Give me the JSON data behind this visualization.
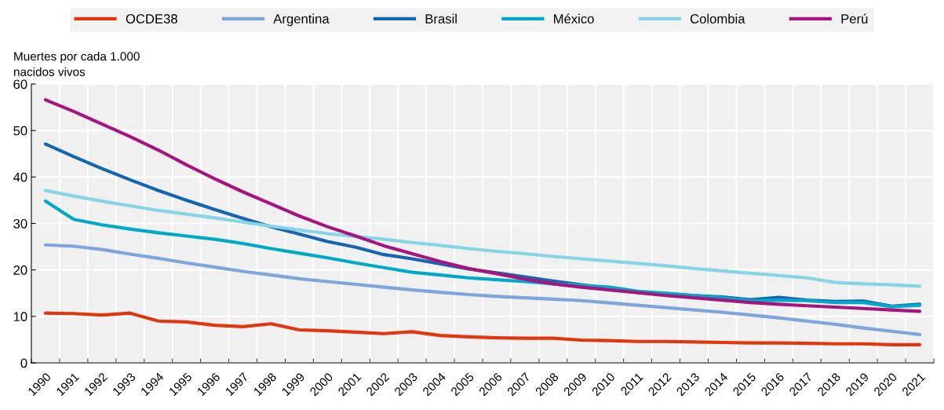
{
  "chart_data": {
    "type": "line",
    "ylabel": "Muertes por cada 1.000\nnacidos vivos",
    "categories": [
      "1990",
      "1991",
      "1992",
      "1993",
      "1994",
      "1995",
      "1996",
      "1997",
      "1998",
      "1999",
      "2000",
      "2001",
      "2002",
      "2003",
      "2004",
      "2005",
      "2006",
      "2007",
      "2008",
      "2009",
      "2010",
      "2011",
      "2012",
      "2013",
      "2014",
      "2015",
      "2016",
      "2017",
      "2018",
      "2019",
      "2020",
      "2021"
    ],
    "series": [
      {
        "name": "OCDE38",
        "color": "#e2360f",
        "values": [
          10.7,
          10.6,
          10.3,
          10.7,
          9.0,
          8.8,
          8.1,
          7.8,
          8.4,
          7.1,
          6.9,
          6.6,
          6.3,
          6.7,
          5.9,
          5.6,
          5.4,
          5.3,
          5.3,
          4.9,
          4.8,
          4.6,
          4.6,
          4.5,
          4.4,
          4.3,
          4.3,
          4.2,
          4.1,
          4.1,
          3.9,
          3.9
        ]
      },
      {
        "name": "Argentina",
        "color": "#7fa6dc",
        "values": [
          25.4,
          25.1,
          24.4,
          23.4,
          22.5,
          21.5,
          20.6,
          19.7,
          18.9,
          18.1,
          17.5,
          16.9,
          16.3,
          15.7,
          15.2,
          14.7,
          14.3,
          14.0,
          13.7,
          13.4,
          12.9,
          12.4,
          11.9,
          11.4,
          10.9,
          10.3,
          9.7,
          9.0,
          8.3,
          7.5,
          6.8,
          6.1
        ]
      },
      {
        "name": "Brasil",
        "color": "#1565b0",
        "values": [
          47.1,
          44.4,
          41.8,
          39.4,
          37.1,
          35.0,
          33.0,
          31.1,
          29.3,
          27.7,
          26.1,
          24.9,
          23.3,
          22.4,
          21.3,
          20.2,
          19.4,
          18.5,
          17.6,
          16.8,
          16.0,
          15.2,
          14.9,
          14.5,
          14.2,
          13.6,
          14.1,
          13.5,
          13.2,
          13.3,
          12.2,
          12.6
        ]
      },
      {
        "name": "México",
        "color": "#00a9c9",
        "values": [
          34.8,
          30.9,
          29.7,
          28.8,
          28.0,
          27.3,
          26.6,
          25.7,
          24.6,
          23.6,
          22.6,
          21.5,
          20.5,
          19.5,
          18.9,
          18.3,
          17.9,
          17.5,
          17.0,
          16.7,
          16.3,
          15.4,
          15.0,
          14.5,
          14.0,
          13.4,
          13.5,
          13.4,
          13.0,
          13.0,
          12.1,
          12.4
        ]
      },
      {
        "name": "Colombia",
        "color": "#86d4e5",
        "values": [
          37.1,
          35.9,
          34.8,
          33.8,
          32.8,
          32.0,
          31.2,
          30.3,
          29.4,
          28.6,
          27.8,
          27.2,
          26.6,
          25.9,
          25.3,
          24.6,
          24.0,
          23.5,
          22.9,
          22.4,
          21.9,
          21.4,
          20.9,
          20.3,
          19.8,
          19.3,
          18.8,
          18.3,
          17.3,
          17.0,
          16.8,
          16.5
        ]
      },
      {
        "name": "Perú",
        "color": "#a6157f",
        "values": [
          56.6,
          54.1,
          51.4,
          48.7,
          45.8,
          42.6,
          39.6,
          36.8,
          34.2,
          31.6,
          29.3,
          27.3,
          25.2,
          23.5,
          21.8,
          20.3,
          19.2,
          18.0,
          17.0,
          16.3,
          15.7,
          15.1,
          14.5,
          14.0,
          13.5,
          13.0,
          12.6,
          12.3,
          12.0,
          11.7,
          11.4,
          11.1
        ]
      }
    ],
    "ylim": [
      0,
      60
    ],
    "yticks": [
      0,
      10,
      20,
      30,
      40,
      50,
      60
    ],
    "grid": true,
    "legend": "top",
    "marker": "none",
    "line_style": "solid"
  }
}
